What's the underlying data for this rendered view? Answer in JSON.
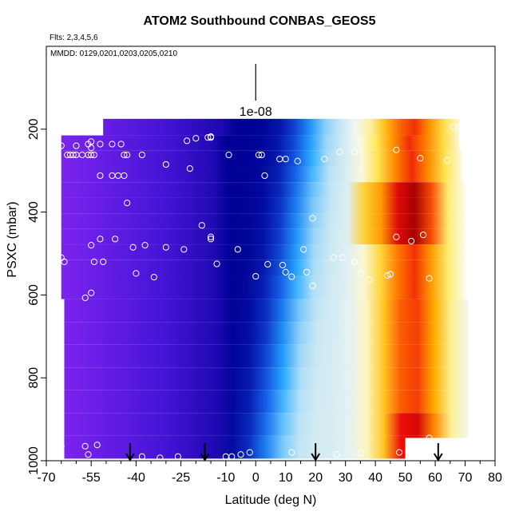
{
  "header": {
    "title": "ATOM2 Southbound CONBAS_GEOS5",
    "flights": "Flts: 2,3,4,5,6",
    "dates": "MMDD: 0129,0201,0203,0205,0210"
  },
  "chart_data": {
    "type": "heatmap",
    "title": "ATOM2 Southbound CONBAS_GEOS5",
    "xlabel": "Latitude (deg N)",
    "ylabel": "PSXC (mbar)",
    "xlim": [
      -70,
      80
    ],
    "ylim": [
      1000,
      0
    ],
    "x_ticks": [
      -70,
      -55,
      -40,
      -25,
      -10,
      0,
      10,
      20,
      30,
      40,
      50,
      60,
      70,
      80
    ],
    "x_tick_labels": [
      "-70",
      "-55",
      "-40",
      "-25",
      "-10",
      "0",
      "10",
      "20",
      "30",
      "40",
      "50",
      "60",
      "70",
      "80"
    ],
    "x_minor_ticks": [
      -65,
      -60,
      -50,
      -45,
      -35,
      -30,
      -20,
      -15,
      -5,
      5,
      15,
      25,
      35,
      45,
      55,
      65,
      75
    ],
    "y_ticks": [
      200,
      400,
      600,
      800,
      1000
    ],
    "y_tick_labels": [
      "200",
      "400",
      "600",
      "800",
      "1000"
    ],
    "colorbar_label": "1e-08",
    "colorbar_pressure": 90,
    "grid": false,
    "arrows_lat": [
      -42,
      -17,
      20,
      61
    ],
    "layers": [
      {
        "p_top": 175,
        "p_bot": 215,
        "lat_min": -51,
        "lat_max": 68
      },
      {
        "p_top": 215,
        "p_bot": 252,
        "lat_min": -65,
        "lat_max": 68
      },
      {
        "p_top": 252,
        "p_bot": 290,
        "lat_min": -65,
        "lat_max": 69
      },
      {
        "p_top": 290,
        "p_bot": 328,
        "lat_min": -65,
        "lat_max": 69
      },
      {
        "p_top": 328,
        "p_bot": 365,
        "lat_min": -65,
        "lat_max": 70
      },
      {
        "p_top": 365,
        "p_bot": 403,
        "lat_min": -65,
        "lat_max": 70
      },
      {
        "p_top": 403,
        "p_bot": 440,
        "lat_min": -65,
        "lat_max": 70
      },
      {
        "p_top": 440,
        "p_bot": 478,
        "lat_min": -65,
        "lat_max": 70
      },
      {
        "p_top": 478,
        "p_bot": 516,
        "lat_min": -65,
        "lat_max": 70
      },
      {
        "p_top": 516,
        "p_bot": 553,
        "lat_min": -65,
        "lat_max": 70
      },
      {
        "p_top": 553,
        "p_bot": 610,
        "lat_min": -65,
        "lat_max": 70
      },
      {
        "p_top": 610,
        "p_bot": 665,
        "lat_min": -64,
        "lat_max": 71
      },
      {
        "p_top": 665,
        "p_bot": 720,
        "lat_min": -64,
        "lat_max": 71
      },
      {
        "p_top": 720,
        "p_bot": 775,
        "lat_min": -64,
        "lat_max": 71
      },
      {
        "p_top": 775,
        "p_bot": 830,
        "lat_min": -64,
        "lat_max": 71
      },
      {
        "p_top": 830,
        "p_bot": 885,
        "lat_min": -64,
        "lat_max": 71
      },
      {
        "p_top": 885,
        "p_bot": 940,
        "lat_min": -64,
        "lat_max": 71
      },
      {
        "p_top": 940,
        "p_bot": 995,
        "lat_min": -64,
        "lat_max": 71
      }
    ],
    "points": [
      [
        -65,
        240
      ],
      [
        -60,
        240
      ],
      [
        -56,
        236
      ],
      [
        -52,
        236
      ],
      [
        -48,
        236
      ],
      [
        -45,
        236
      ],
      [
        -55,
        230
      ],
      [
        -55,
        245
      ],
      [
        -63,
        262
      ],
      [
        -62,
        262
      ],
      [
        -61,
        262
      ],
      [
        -60,
        262
      ],
      [
        -58,
        262
      ],
      [
        -56,
        262
      ],
      [
        -55,
        262
      ],
      [
        -54,
        262
      ],
      [
        -44,
        262
      ],
      [
        -43,
        262
      ],
      [
        -38,
        262
      ],
      [
        -30,
        285
      ],
      [
        -23,
        228
      ],
      [
        -20,
        222
      ],
      [
        -16,
        220
      ],
      [
        -15,
        220
      ],
      [
        -15,
        218
      ],
      [
        -22,
        295
      ],
      [
        -9,
        262
      ],
      [
        1,
        262
      ],
      [
        2,
        262
      ],
      [
        3,
        312
      ],
      [
        8,
        272
      ],
      [
        10,
        272
      ],
      [
        14,
        277
      ],
      [
        23,
        272
      ],
      [
        28,
        255
      ],
      [
        33,
        255
      ],
      [
        47,
        250
      ],
      [
        55,
        270
      ],
      [
        64,
        275
      ],
      [
        66,
        195
      ],
      [
        68,
        195
      ],
      [
        -52,
        312
      ],
      [
        -48,
        312
      ],
      [
        -46,
        312
      ],
      [
        -44,
        312
      ],
      [
        -43,
        378
      ],
      [
        -18,
        432
      ],
      [
        19,
        415
      ],
      [
        -65,
        510
      ],
      [
        -64,
        520
      ],
      [
        -55,
        480
      ],
      [
        -54,
        520
      ],
      [
        -51,
        520
      ],
      [
        -52,
        465
      ],
      [
        -47,
        465
      ],
      [
        -41,
        485
      ],
      [
        -37,
        480
      ],
      [
        -30,
        485
      ],
      [
        -24,
        490
      ],
      [
        -15,
        465
      ],
      [
        -15,
        460
      ],
      [
        -13,
        525
      ],
      [
        -6,
        490
      ],
      [
        0,
        555
      ],
      [
        4,
        526
      ],
      [
        9,
        528
      ],
      [
        12,
        556
      ],
      [
        10,
        545
      ],
      [
        16,
        490
      ],
      [
        17,
        545
      ],
      [
        19,
        578
      ],
      [
        26,
        510
      ],
      [
        29,
        510
      ],
      [
        33,
        520
      ],
      [
        35,
        548
      ],
      [
        38,
        563
      ],
      [
        47,
        460
      ],
      [
        52,
        470
      ],
      [
        56,
        455
      ],
      [
        58,
        560
      ],
      [
        45,
        550
      ],
      [
        44,
        553
      ],
      [
        -55,
        595
      ],
      [
        -57,
        607
      ],
      [
        -40,
        548
      ],
      [
        -34,
        557
      ],
      [
        -65,
        965
      ],
      [
        -57,
        965
      ],
      [
        -53,
        962
      ],
      [
        -56,
        985
      ],
      [
        -38,
        990
      ],
      [
        -32,
        993
      ],
      [
        -26,
        990
      ],
      [
        -10,
        990
      ],
      [
        -8,
        990
      ],
      [
        -5,
        985
      ],
      [
        -2,
        980
      ],
      [
        12,
        980
      ],
      [
        27,
        985
      ],
      [
        35,
        982
      ],
      [
        48,
        980
      ],
      [
        52,
        995
      ],
      [
        58,
        945
      ]
    ]
  }
}
